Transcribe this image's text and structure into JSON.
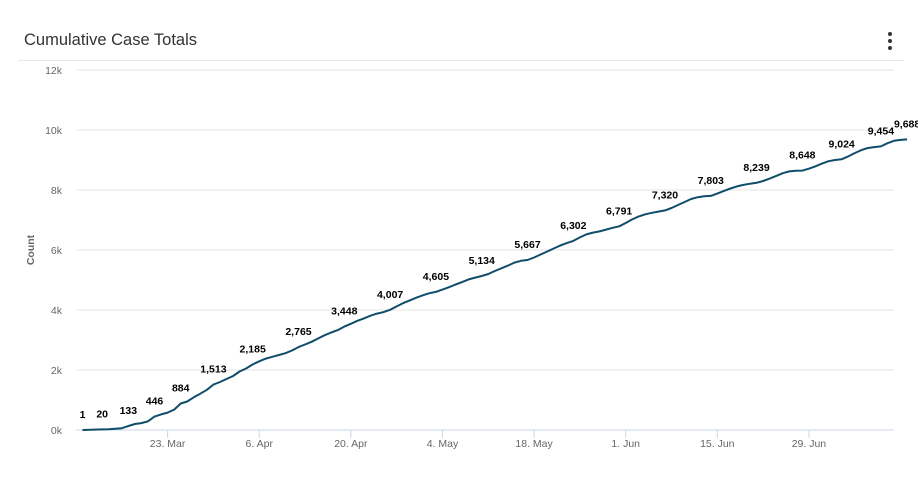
{
  "header": {
    "title": "Cumulative Case Totals",
    "menu_icon": "kebab-menu-icon"
  },
  "chart_data": {
    "type": "line",
    "title": "Cumulative Case Totals",
    "xlabel": "",
    "ylabel": "Count",
    "ylim": [
      0,
      12000
    ],
    "y_ticks": [
      0,
      2000,
      4000,
      6000,
      8000,
      10000,
      12000
    ],
    "y_tick_labels": [
      "0k",
      "2k",
      "4k",
      "6k",
      "8k",
      "10k",
      "12k"
    ],
    "x_tick_labels": [
      {
        "date": "2020-03-23",
        "label": "23. Mar"
      },
      {
        "date": "2020-04-06",
        "label": "6. Apr"
      },
      {
        "date": "2020-04-20",
        "label": "20. Apr"
      },
      {
        "date": "2020-05-04",
        "label": "4. May"
      },
      {
        "date": "2020-05-18",
        "label": "18. May"
      },
      {
        "date": "2020-06-01",
        "label": "1. Jun"
      },
      {
        "date": "2020-06-15",
        "label": "15. Jun"
      },
      {
        "date": "2020-06-29",
        "label": "29. Jun"
      }
    ],
    "xlim": [
      "2020-03-09",
      "2020-07-12"
    ],
    "grid": true,
    "line_color": "#0f4d6b",
    "series": [
      {
        "points": [
          {
            "x": "2020-03-10",
            "y": 1,
            "label": "1"
          },
          {
            "x": "2020-03-13",
            "y": 20,
            "label": "20"
          },
          {
            "x": "2020-03-14",
            "y": 25
          },
          {
            "x": "2020-03-15",
            "y": 40
          },
          {
            "x": "2020-03-16",
            "y": 60
          },
          {
            "x": "2020-03-17",
            "y": 133,
            "label": "133"
          },
          {
            "x": "2020-03-18",
            "y": 200
          },
          {
            "x": "2020-03-19",
            "y": 230
          },
          {
            "x": "2020-03-20",
            "y": 290
          },
          {
            "x": "2020-03-21",
            "y": 446,
            "label": "446"
          },
          {
            "x": "2020-03-22",
            "y": 520
          },
          {
            "x": "2020-03-23",
            "y": 580
          },
          {
            "x": "2020-03-24",
            "y": 680
          },
          {
            "x": "2020-03-25",
            "y": 884,
            "label": "884"
          },
          {
            "x": "2020-03-26",
            "y": 950
          },
          {
            "x": "2020-03-27",
            "y": 1090
          },
          {
            "x": "2020-03-28",
            "y": 1210
          },
          {
            "x": "2020-03-29",
            "y": 1340
          },
          {
            "x": "2020-03-30",
            "y": 1513,
            "label": "1,513"
          },
          {
            "x": "2020-03-31",
            "y": 1600
          },
          {
            "x": "2020-04-01",
            "y": 1700
          },
          {
            "x": "2020-04-02",
            "y": 1800
          },
          {
            "x": "2020-04-03",
            "y": 1950
          },
          {
            "x": "2020-04-04",
            "y": 2050
          },
          {
            "x": "2020-04-05",
            "y": 2185,
            "label": "2,185"
          },
          {
            "x": "2020-04-06",
            "y": 2290
          },
          {
            "x": "2020-04-07",
            "y": 2380
          },
          {
            "x": "2020-04-08",
            "y": 2440
          },
          {
            "x": "2020-04-09",
            "y": 2500
          },
          {
            "x": "2020-04-10",
            "y": 2560
          },
          {
            "x": "2020-04-11",
            "y": 2650
          },
          {
            "x": "2020-04-12",
            "y": 2765,
            "label": "2,765"
          },
          {
            "x": "2020-04-13",
            "y": 2850
          },
          {
            "x": "2020-04-14",
            "y": 2940
          },
          {
            "x": "2020-04-15",
            "y": 3050
          },
          {
            "x": "2020-04-16",
            "y": 3160
          },
          {
            "x": "2020-04-17",
            "y": 3250
          },
          {
            "x": "2020-04-18",
            "y": 3330
          },
          {
            "x": "2020-04-19",
            "y": 3448,
            "label": "3,448"
          },
          {
            "x": "2020-04-20",
            "y": 3540
          },
          {
            "x": "2020-04-21",
            "y": 3640
          },
          {
            "x": "2020-04-22",
            "y": 3720
          },
          {
            "x": "2020-04-23",
            "y": 3810
          },
          {
            "x": "2020-04-24",
            "y": 3880
          },
          {
            "x": "2020-04-25",
            "y": 3930
          },
          {
            "x": "2020-04-26",
            "y": 4007,
            "label": "4,007"
          },
          {
            "x": "2020-04-27",
            "y": 4120
          },
          {
            "x": "2020-04-28",
            "y": 4230
          },
          {
            "x": "2020-04-29",
            "y": 4320
          },
          {
            "x": "2020-04-30",
            "y": 4410
          },
          {
            "x": "2020-05-01",
            "y": 4490
          },
          {
            "x": "2020-05-02",
            "y": 4560
          },
          {
            "x": "2020-05-03",
            "y": 4605,
            "label": "4,605"
          },
          {
            "x": "2020-05-04",
            "y": 4680
          },
          {
            "x": "2020-05-05",
            "y": 4760
          },
          {
            "x": "2020-05-06",
            "y": 4850
          },
          {
            "x": "2020-05-07",
            "y": 4930
          },
          {
            "x": "2020-05-08",
            "y": 5020
          },
          {
            "x": "2020-05-09",
            "y": 5080
          },
          {
            "x": "2020-05-10",
            "y": 5134,
            "label": "5,134"
          },
          {
            "x": "2020-05-11",
            "y": 5200
          },
          {
            "x": "2020-05-12",
            "y": 5300
          },
          {
            "x": "2020-05-13",
            "y": 5390
          },
          {
            "x": "2020-05-14",
            "y": 5480
          },
          {
            "x": "2020-05-15",
            "y": 5580
          },
          {
            "x": "2020-05-16",
            "y": 5640
          },
          {
            "x": "2020-05-17",
            "y": 5667,
            "label": "5,667"
          },
          {
            "x": "2020-05-18",
            "y": 5750
          },
          {
            "x": "2020-05-19",
            "y": 5850
          },
          {
            "x": "2020-05-20",
            "y": 5950
          },
          {
            "x": "2020-05-21",
            "y": 6050
          },
          {
            "x": "2020-05-22",
            "y": 6150
          },
          {
            "x": "2020-05-23",
            "y": 6230
          },
          {
            "x": "2020-05-24",
            "y": 6302,
            "label": "6,302"
          },
          {
            "x": "2020-05-25",
            "y": 6420
          },
          {
            "x": "2020-05-26",
            "y": 6520
          },
          {
            "x": "2020-05-27",
            "y": 6580
          },
          {
            "x": "2020-05-28",
            "y": 6620
          },
          {
            "x": "2020-05-29",
            "y": 6680
          },
          {
            "x": "2020-05-30",
            "y": 6740
          },
          {
            "x": "2020-05-31",
            "y": 6791,
            "label": "6,791"
          },
          {
            "x": "2020-06-01",
            "y": 6900
          },
          {
            "x": "2020-06-02",
            "y": 7020
          },
          {
            "x": "2020-06-03",
            "y": 7120
          },
          {
            "x": "2020-06-04",
            "y": 7190
          },
          {
            "x": "2020-06-05",
            "y": 7240
          },
          {
            "x": "2020-06-06",
            "y": 7280
          },
          {
            "x": "2020-06-07",
            "y": 7320,
            "label": "7,320"
          },
          {
            "x": "2020-06-08",
            "y": 7400
          },
          {
            "x": "2020-06-09",
            "y": 7500
          },
          {
            "x": "2020-06-10",
            "y": 7600
          },
          {
            "x": "2020-06-11",
            "y": 7700
          },
          {
            "x": "2020-06-12",
            "y": 7760
          },
          {
            "x": "2020-06-13",
            "y": 7790
          },
          {
            "x": "2020-06-14",
            "y": 7803,
            "label": "7,803"
          },
          {
            "x": "2020-06-15",
            "y": 7880
          },
          {
            "x": "2020-06-16",
            "y": 7970
          },
          {
            "x": "2020-06-17",
            "y": 8050
          },
          {
            "x": "2020-06-18",
            "y": 8120
          },
          {
            "x": "2020-06-19",
            "y": 8170
          },
          {
            "x": "2020-06-20",
            "y": 8210
          },
          {
            "x": "2020-06-21",
            "y": 8239,
            "label": "8,239"
          },
          {
            "x": "2020-06-22",
            "y": 8300
          },
          {
            "x": "2020-06-23",
            "y": 8380
          },
          {
            "x": "2020-06-24",
            "y": 8470
          },
          {
            "x": "2020-06-25",
            "y": 8560
          },
          {
            "x": "2020-06-26",
            "y": 8620
          },
          {
            "x": "2020-06-27",
            "y": 8640
          },
          {
            "x": "2020-06-28",
            "y": 8648,
            "label": "8,648"
          },
          {
            "x": "2020-06-29",
            "y": 8710
          },
          {
            "x": "2020-06-30",
            "y": 8790
          },
          {
            "x": "2020-07-01",
            "y": 8880
          },
          {
            "x": "2020-07-02",
            "y": 8960
          },
          {
            "x": "2020-07-03",
            "y": 9000
          },
          {
            "x": "2020-07-04",
            "y": 9024,
            "label": "9,024"
          },
          {
            "x": "2020-07-05",
            "y": 9120
          },
          {
            "x": "2020-07-06",
            "y": 9230
          },
          {
            "x": "2020-07-07",
            "y": 9330
          },
          {
            "x": "2020-07-08",
            "y": 9400
          },
          {
            "x": "2020-07-09",
            "y": 9430
          },
          {
            "x": "2020-07-10",
            "y": 9454,
            "label": "9,454"
          },
          {
            "x": "2020-07-11",
            "y": 9560
          },
          {
            "x": "2020-07-12",
            "y": 9640
          },
          {
            "x": "2020-07-13",
            "y": 9670
          },
          {
            "x": "2020-07-14",
            "y": 9688,
            "label": "9,688"
          }
        ]
      }
    ]
  }
}
